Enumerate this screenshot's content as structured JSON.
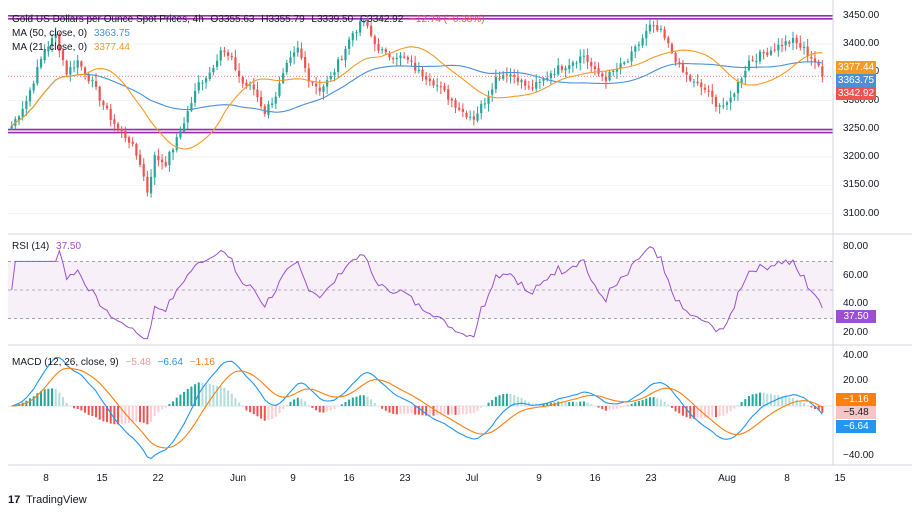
{
  "header": {
    "title": "Gold US Dollars per Ounce Spot Prices, 4h",
    "open": "O3355.63",
    "high": "H3355.79",
    "low": "L3339.50",
    "close": "C3342.92",
    "change": "−12.74 (−0.38%)",
    "ma50_label": "MA (50, close, 0)",
    "ma50_value": "3363.75",
    "ma21_label": "MA (21, close, 0)",
    "ma21_value": "3377.44"
  },
  "rsi_legend": {
    "label": "RSI (14)",
    "value": "37.50"
  },
  "macd_legend": {
    "label": "MACD (12, 26, close, 9)",
    "hist": "−5.48",
    "macd": "−6.64",
    "signal": "−1.16"
  },
  "badges": {
    "ma21": "3377.44",
    "ma50": "3363.75",
    "price": "3342.92",
    "rsi": "37.50",
    "macd_signal": "−1.16",
    "macd_hist": "−5.48",
    "macd_line": "−6.64"
  },
  "brand": {
    "logo": "17",
    "name": "TradingView"
  },
  "colors": {
    "up": "#26a69a",
    "down": "#ef5350",
    "ma21": "#f59a23",
    "ma50": "#4a90d9",
    "rsi": "#9c4fd1",
    "channel": "#9c27b0",
    "macd": "#2196f3",
    "signal": "#ff7f0e"
  },
  "chart_data": [
    {
      "type": "candlestick",
      "title": "Gold US Dollars per Ounce Spot Prices, 4h",
      "x_ticks": [
        "8",
        "15",
        "22",
        "Jun",
        "9",
        "16",
        "23",
        "Jul",
        "9",
        "16",
        "23",
        "Aug",
        "8",
        "15"
      ],
      "y_ticks": [
        3450,
        3400,
        3350,
        3300,
        3250,
        3200,
        3150,
        3100
      ],
      "ylim": [
        3080,
        3460
      ],
      "horizontal_lines": [
        3447,
        3246
      ],
      "last_price": 3342.92,
      "anchors_index_close": [
        [
          0,
          3255
        ],
        [
          4,
          3300
        ],
        [
          9,
          3390
        ],
        [
          12,
          3415
        ],
        [
          15,
          3350
        ],
        [
          18,
          3370
        ],
        [
          22,
          3330
        ],
        [
          26,
          3280
        ],
        [
          29,
          3250
        ],
        [
          32,
          3230
        ],
        [
          35,
          3190
        ],
        [
          37,
          3140
        ],
        [
          39,
          3200
        ],
        [
          42,
          3190
        ],
        [
          45,
          3230
        ],
        [
          48,
          3280
        ],
        [
          51,
          3330
        ],
        [
          54,
          3350
        ],
        [
          57,
          3390
        ],
        [
          60,
          3370
        ],
        [
          63,
          3330
        ],
        [
          66,
          3320
        ],
        [
          69,
          3280
        ],
        [
          72,
          3310
        ],
        [
          75,
          3360
        ],
        [
          78,
          3390
        ],
        [
          81,
          3340
        ],
        [
          84,
          3320
        ],
        [
          87,
          3340
        ],
        [
          90,
          3380
        ],
        [
          93,
          3420
        ],
        [
          96,
          3440
        ],
        [
          99,
          3400
        ],
        [
          102,
          3380
        ],
        [
          105,
          3380
        ],
        [
          108,
          3370
        ],
        [
          111,
          3350
        ],
        [
          114,
          3340
        ],
        [
          117,
          3320
        ],
        [
          120,
          3300
        ],
        [
          123,
          3280
        ],
        [
          126,
          3270
        ],
        [
          129,
          3300
        ],
        [
          132,
          3340
        ],
        [
          135,
          3350
        ],
        [
          138,
          3340
        ],
        [
          141,
          3320
        ],
        [
          144,
          3330
        ],
        [
          147,
          3350
        ],
        [
          150,
          3360
        ],
        [
          153,
          3370
        ],
        [
          156,
          3380
        ],
        [
          159,
          3350
        ],
        [
          162,
          3340
        ],
        [
          165,
          3355
        ],
        [
          168,
          3370
        ],
        [
          171,
          3400
        ],
        [
          174,
          3430
        ],
        [
          177,
          3420
        ],
        [
          180,
          3385
        ],
        [
          183,
          3350
        ],
        [
          186,
          3330
        ],
        [
          189,
          3320
        ],
        [
          192,
          3295
        ],
        [
          195,
          3290
        ],
        [
          198,
          3330
        ],
        [
          201,
          3370
        ],
        [
          204,
          3380
        ],
        [
          207,
          3390
        ],
        [
          210,
          3400
        ],
        [
          213,
          3405
        ],
        [
          216,
          3390
        ],
        [
          219,
          3370
        ],
        [
          221,
          3343
        ]
      ],
      "ma21": {
        "name": "MA (21, close, 0)",
        "last": 3377.44
      },
      "ma50": {
        "name": "MA (50, close, 0)",
        "last": 3363.75
      }
    },
    {
      "type": "line",
      "title": "RSI (14)",
      "y_ticks": [
        80,
        60,
        40,
        20
      ],
      "ylim": [
        15,
        85
      ],
      "bands": [
        70,
        50,
        30
      ],
      "last": 37.5
    },
    {
      "type": "line",
      "title": "MACD (12, 26, close, 9)",
      "y_ticks": [
        40,
        20,
        -20,
        -40
      ],
      "ylim": [
        -45,
        45
      ],
      "series": [
        {
          "name": "MACD",
          "last": -6.64
        },
        {
          "name": "Signal",
          "last": -1.16
        },
        {
          "name": "Histogram",
          "last": -5.48
        }
      ]
    }
  ]
}
